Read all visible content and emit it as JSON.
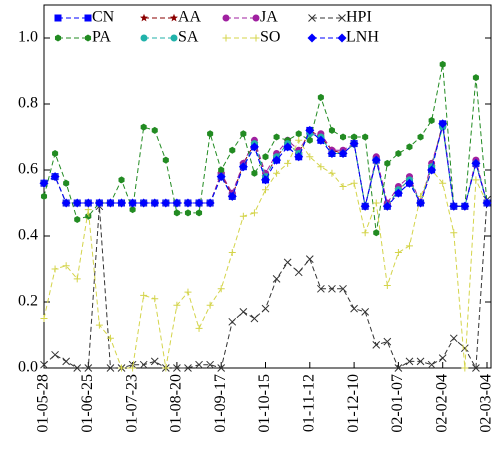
{
  "chart_data": {
    "type": "line",
    "categories": [
      "01-05-28",
      null,
      null,
      null,
      "01-06-25",
      null,
      null,
      null,
      "01-07-23",
      null,
      null,
      null,
      "01-08-20",
      null,
      null,
      null,
      "01-09-17",
      null,
      null,
      null,
      "01-10-15",
      null,
      null,
      null,
      "01-11-12",
      null,
      null,
      null,
      "01-12-10",
      null,
      null,
      null,
      "02-01-07",
      null,
      null,
      null,
      "02-02-04",
      null,
      null,
      null,
      "02-03-04"
    ],
    "ylim": [
      0,
      1.1
    ],
    "yticks": [
      {
        "value": 0,
        "label": "0.0"
      },
      0.2,
      0.4,
      0.6,
      0.8,
      {
        "value": 1,
        "label": "1.0"
      }
    ],
    "legend": "upper left",
    "series": [
      {
        "name": "CN",
        "color": "#0000ff",
        "marker": "square",
        "values": [
          0.56,
          0.58,
          0.5,
          0.5,
          0.5,
          0.5,
          0.5,
          0.5,
          0.5,
          0.5,
          0.5,
          0.5,
          0.5,
          0.5,
          0.5,
          0.5,
          0.58,
          0.52,
          0.61,
          0.67,
          0.57,
          0.63,
          0.67,
          0.64,
          0.72,
          0.69,
          0.65,
          0.65,
          0.68,
          0.49,
          0.63,
          0.49,
          0.53,
          0.56,
          0.5,
          0.6,
          0.74,
          0.49,
          0.49,
          0.62,
          0.5
        ]
      },
      {
        "name": "AA",
        "color": "#8b0000",
        "marker": "star",
        "values": [
          0.56,
          0.58,
          0.5,
          0.5,
          0.5,
          0.5,
          0.5,
          0.5,
          0.5,
          0.5,
          0.5,
          0.5,
          0.5,
          0.5,
          0.5,
          0.5,
          0.59,
          0.52,
          0.62,
          0.68,
          0.58,
          0.64,
          0.68,
          0.65,
          0.72,
          0.7,
          0.66,
          0.65,
          0.68,
          0.49,
          0.63,
          0.49,
          0.54,
          0.57,
          0.5,
          0.61,
          0.74,
          0.49,
          0.49,
          0.62,
          0.5
        ]
      },
      {
        "name": "JA",
        "color": "#a020a0",
        "marker": "circle",
        "values": [
          0.56,
          0.58,
          0.5,
          0.5,
          0.5,
          0.5,
          0.5,
          0.5,
          0.5,
          0.5,
          0.5,
          0.5,
          0.5,
          0.5,
          0.5,
          0.5,
          0.59,
          0.53,
          0.62,
          0.69,
          0.59,
          0.65,
          0.69,
          0.66,
          0.71,
          0.71,
          0.66,
          0.66,
          0.68,
          0.49,
          0.64,
          0.5,
          0.55,
          0.58,
          0.5,
          0.62,
          0.73,
          0.49,
          0.49,
          0.63,
          0.5
        ]
      },
      {
        "name": "HPI",
        "color": "#333333",
        "marker": "x",
        "values": [
          0.01,
          0.04,
          0.02,
          0.0,
          0.0,
          0.49,
          0.0,
          0.0,
          0.01,
          0.01,
          0.02,
          0.0,
          0.0,
          0.0,
          0.01,
          0.01,
          0.0,
          0.14,
          0.17,
          0.15,
          0.18,
          0.27,
          0.32,
          0.29,
          0.33,
          0.24,
          0.24,
          0.24,
          0.18,
          0.17,
          0.07,
          0.08,
          0.0,
          0.02,
          0.02,
          0.01,
          0.03,
          0.09,
          0.06,
          0.0,
          0.51
        ]
      },
      {
        "name": "PA",
        "color": "#228b22",
        "marker": "hexagon",
        "values": [
          0.52,
          0.65,
          0.56,
          0.45,
          0.46,
          0.5,
          0.5,
          0.57,
          0.48,
          0.73,
          0.72,
          0.63,
          0.47,
          0.47,
          0.47,
          0.71,
          0.6,
          0.66,
          0.71,
          0.59,
          0.64,
          0.7,
          0.69,
          0.71,
          0.69,
          0.82,
          0.72,
          0.7,
          0.7,
          0.7,
          0.41,
          0.62,
          0.65,
          0.67,
          0.7,
          0.75,
          0.92,
          0.49,
          0.49,
          0.88,
          0.5
        ]
      },
      {
        "name": "SA",
        "color": "#20b2aa",
        "marker": "circle",
        "values": [
          0.56,
          0.58,
          0.5,
          0.5,
          0.5,
          0.5,
          0.5,
          0.5,
          0.5,
          0.5,
          0.5,
          0.5,
          0.5,
          0.5,
          0.5,
          0.5,
          0.58,
          0.52,
          0.61,
          0.68,
          0.58,
          0.64,
          0.68,
          0.65,
          0.71,
          0.7,
          0.65,
          0.65,
          0.68,
          0.49,
          0.63,
          0.49,
          0.54,
          0.57,
          0.5,
          0.61,
          0.73,
          0.49,
          0.49,
          0.62,
          0.5
        ]
      },
      {
        "name": "SO",
        "color": "#d4d44a",
        "marker": "plus",
        "values": [
          0.15,
          0.3,
          0.31,
          0.27,
          0.48,
          0.13,
          0.09,
          0.0,
          0.0,
          0.22,
          0.21,
          0.0,
          0.19,
          0.23,
          0.12,
          0.19,
          0.24,
          0.35,
          0.46,
          0.47,
          0.54,
          0.59,
          0.62,
          0.69,
          0.64,
          0.61,
          0.59,
          0.55,
          0.56,
          0.41,
          0.5,
          0.25,
          0.35,
          0.37,
          0.52,
          0.6,
          0.56,
          0.41,
          0.0,
          0.57,
          0.5
        ]
      },
      {
        "name": "LNH",
        "color": "#0000ff",
        "marker": "diamond",
        "values": [
          0.56,
          0.58,
          0.5,
          0.5,
          0.5,
          0.5,
          0.5,
          0.5,
          0.5,
          0.5,
          0.5,
          0.5,
          0.5,
          0.5,
          0.5,
          0.5,
          0.58,
          0.52,
          0.61,
          0.67,
          0.57,
          0.63,
          0.67,
          0.64,
          0.72,
          0.69,
          0.65,
          0.65,
          0.68,
          0.49,
          0.63,
          0.49,
          0.53,
          0.56,
          0.5,
          0.6,
          0.74,
          0.49,
          0.49,
          0.62,
          0.5
        ]
      }
    ]
  }
}
